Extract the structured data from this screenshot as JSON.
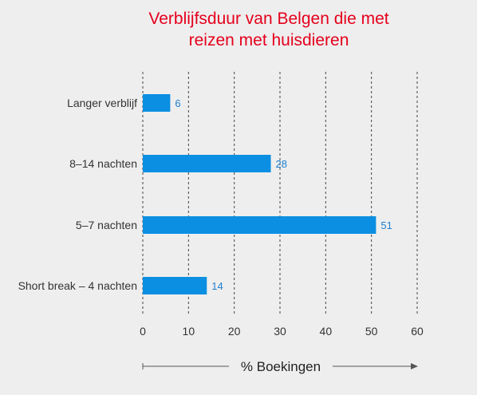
{
  "chart_data": {
    "type": "bar",
    "orientation": "horizontal",
    "title": [
      "Verblijfsduur van Belgen die met",
      "reizen met huisdieren"
    ],
    "categories": [
      "Langer verblijf",
      "8–14 nachten",
      "5–7 nachten",
      "Short break – 4 nachten"
    ],
    "values": [
      6,
      28,
      51,
      14
    ],
    "xlabel": "% Boekingen",
    "xticks": [
      0,
      10,
      20,
      30,
      40,
      50,
      60
    ],
    "xlim": [
      0,
      60
    ],
    "grid": "vertical-dashed",
    "colors": {
      "bar": "#0a8fe2",
      "title": "#e5001c",
      "value": "#1e7fd0"
    }
  }
}
